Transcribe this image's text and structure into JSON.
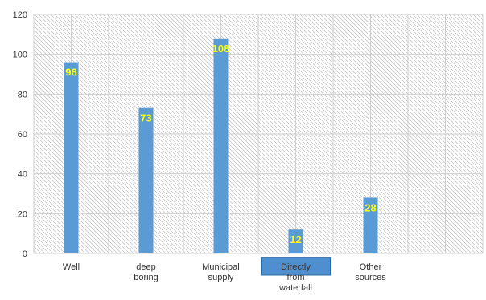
{
  "chart_data": {
    "type": "bar",
    "categories": [
      [
        "Well"
      ],
      [
        "deep",
        "boring"
      ],
      [
        "Municipal",
        "supply"
      ],
      [
        "Directly",
        "from",
        "waterfall"
      ],
      [
        "Other",
        "sources"
      ]
    ],
    "values": [
      96,
      73,
      108,
      12,
      28
    ],
    "data_labels": [
      "96",
      "73",
      "108",
      "12",
      "28"
    ],
    "y_ticks": [
      "0",
      "20",
      "40",
      "60",
      "80",
      "100",
      "120"
    ],
    "ylim": [
      0,
      120
    ],
    "category_slots": 12,
    "bar_slots": [
      1,
      3,
      5,
      7,
      9
    ],
    "grid": true,
    "title": "",
    "xlabel": "",
    "ylabel": "",
    "colors": {
      "bar": "#5b9bd5",
      "grid": "#d0d0d0",
      "hatch": "#b0b0b0",
      "highlight_fill": "#4f8fd0",
      "highlight_text": "#ffffff",
      "data_label": "#ffff00"
    },
    "highlighted_category": 3
  }
}
